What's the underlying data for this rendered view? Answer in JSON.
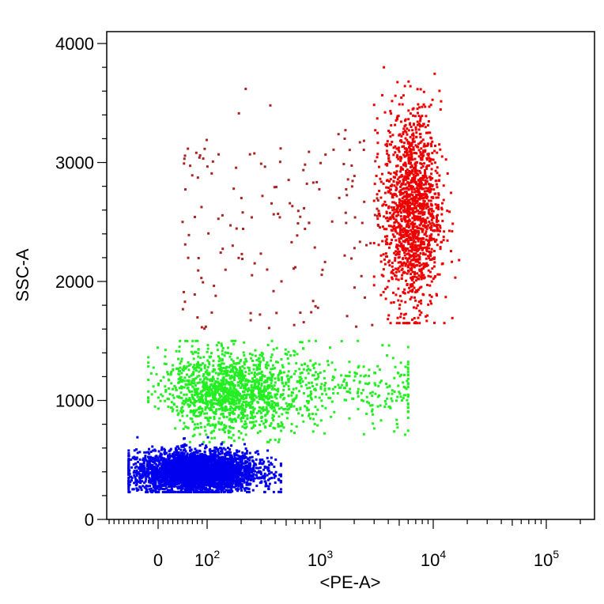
{
  "chart_data": {
    "type": "scatter",
    "xlabel": "<PE-A>",
    "ylabel": "SSC-A",
    "x_scale": "biexponential",
    "xlim": [
      -120,
      250000
    ],
    "ylim": [
      0,
      4100
    ],
    "x_ticks": [
      {
        "value": 0,
        "base": "0",
        "exp": ""
      },
      {
        "value": 100,
        "base": "10",
        "exp": "2"
      },
      {
        "value": 1000,
        "base": "10",
        "exp": "3"
      },
      {
        "value": 10000,
        "base": "10",
        "exp": "4"
      },
      {
        "value": 100000,
        "base": "10",
        "exp": "5"
      }
    ],
    "y_ticks": [
      0,
      1000,
      2000,
      3000,
      4000
    ],
    "grid": false,
    "series": [
      {
        "color": "#0000ee",
        "x_range": [
          -60,
          450
        ],
        "y_range": [
          230,
          690
        ],
        "x_center": 80,
        "y_center": 400,
        "count": 3800
      },
      {
        "color": "#22ee22",
        "x_range": [
          -20,
          6000
        ],
        "y_range": [
          650,
          1500
        ],
        "x_center": 160,
        "y_center": 1080,
        "count": 1700
      },
      {
        "color": "#ee0000",
        "x_range": [
          3000,
          20000
        ],
        "y_range": [
          1650,
          3800
        ],
        "x_center": 6500,
        "y_center": 2600,
        "count": 1500
      },
      {
        "color": "#aa2222",
        "x_range": [
          30,
          3500
        ],
        "y_range": [
          1580,
          3750
        ],
        "count": 160
      }
    ]
  }
}
